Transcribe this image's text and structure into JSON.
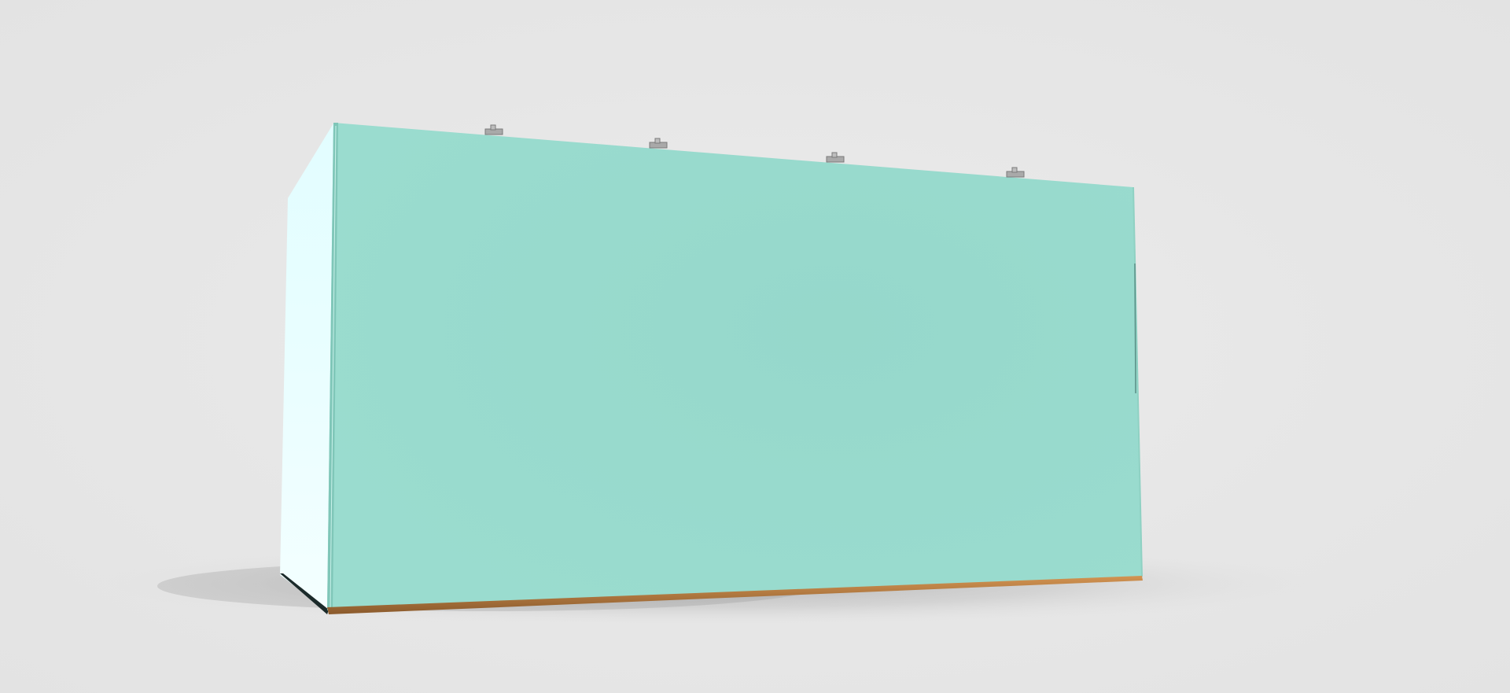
{
  "scene": {
    "object": "cabinet-3d-model",
    "colors": {
      "background": "#e6e6e6",
      "front_panel": "#9adccf",
      "front_panel_center": "#96d8cb",
      "side_panel_top": "#e2fdff",
      "side_panel_bottom": "#f4ffff",
      "front_edge_strip": "#7fc6b8",
      "base_strip": "#c8894a",
      "base_strip_dark": "#8a5a2c",
      "bottom_edge_dark": "#1b2a2a",
      "hinge_metal": "#a9a9a9",
      "floor_shadow": "#9a9a9a"
    },
    "hinge_count": 4
  }
}
